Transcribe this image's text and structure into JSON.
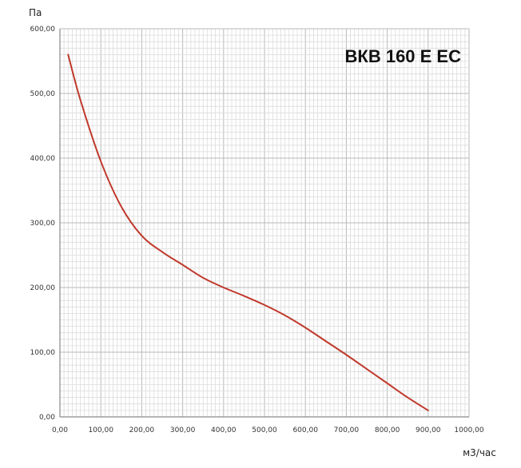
{
  "chart_data": {
    "type": "line",
    "title": "ВКВ 160 Е ЕС",
    "ylabel": "Па",
    "xlabel": "м3/час",
    "xlim": [
      0,
      1000
    ],
    "ylim": [
      0,
      600
    ],
    "x_ticks": [
      "0,00",
      "100,00",
      "200,00",
      "300,00",
      "400,00",
      "500,00",
      "600,00",
      "700,00",
      "800,00",
      "900,00",
      "1000,00"
    ],
    "y_ticks": [
      "0,00",
      "100,00",
      "200,00",
      "300,00",
      "400,00",
      "500,00",
      "600,00"
    ],
    "grid": true,
    "line_color": "#c0392b",
    "series": [
      {
        "x": [
          20,
          50,
          100,
          150,
          200,
          250,
          300,
          350,
          400,
          450,
          500,
          550,
          600,
          650,
          700,
          750,
          800,
          850,
          900
        ],
        "y": [
          560,
          490,
          395,
          325,
          280,
          255,
          235,
          215,
          200,
          187,
          173,
          157,
          138,
          117,
          96,
          74,
          52,
          30,
          10
        ]
      }
    ]
  }
}
